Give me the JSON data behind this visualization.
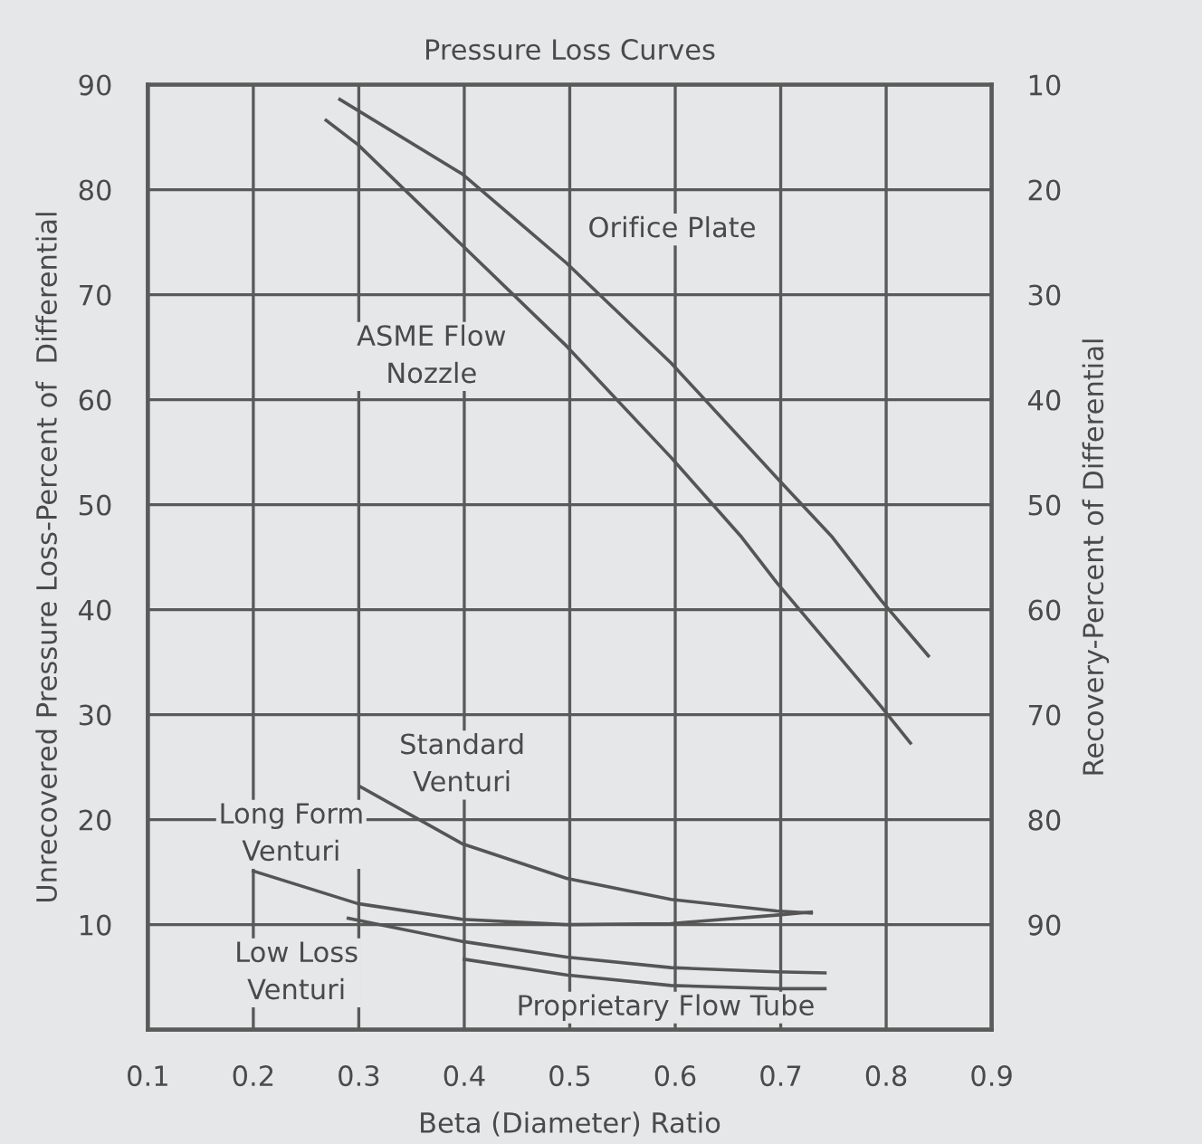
{
  "chart_data": {
    "type": "line",
    "title": "Pressure Loss Curves",
    "xlabel": "Beta (Diameter) Ratio",
    "ylabel": "Unrecovered Pressure Loss-Percent of  Differential",
    "y2label": "Recovery-Percent of Differential",
    "xlim": [
      0.1,
      0.9
    ],
    "xticks": [
      0.1,
      0.2,
      0.3,
      0.4,
      0.5,
      0.6,
      0.7,
      0.8,
      0.9
    ],
    "ylim": [
      0,
      90
    ],
    "yticks": [
      10,
      20,
      30,
      40,
      50,
      60,
      70,
      80,
      90
    ],
    "y2lim": [
      100,
      10
    ],
    "y2ticks": [
      10,
      20,
      30,
      40,
      50,
      60,
      70,
      80,
      90
    ],
    "grid": true,
    "legend": false,
    "marker": "none",
    "line_style": "solid",
    "series": [
      {
        "name": "Orifice Plate",
        "color": "#555555",
        "x": [
          0.282,
          0.398,
          0.497,
          0.596,
          0.696,
          0.749,
          0.795,
          0.84
        ],
        "values": [
          88.6,
          81.5,
          73.0,
          63.5,
          52.6,
          46.9,
          40.9,
          35.6
        ]
      },
      {
        "name": "ASME Flow\nNozzle",
        "color": "#555555",
        "x": [
          0.269,
          0.299,
          0.398,
          0.497,
          0.596,
          0.663,
          0.696,
          0.795,
          0.823
        ],
        "values": [
          86.6,
          84.3,
          74.7,
          65.1,
          54.5,
          46.9,
          42.6,
          30.8,
          27.3
        ]
      },
      {
        "name": "Standard\nVenturi",
        "color": "#555555",
        "x": [
          0.302,
          0.398,
          0.497,
          0.596,
          0.696,
          0.729
        ],
        "values": [
          23.1,
          17.7,
          14.4,
          12.4,
          11.3,
          11.1
        ]
      },
      {
        "name": "Long Form\nVenturi",
        "color": "#555555",
        "x": [
          0.2,
          0.299,
          0.398,
          0.497,
          0.596,
          0.696,
          0.729
        ],
        "values": [
          15.1,
          12.0,
          10.5,
          10.0,
          10.1,
          10.9,
          11.2
        ]
      },
      {
        "name": "Low Loss\nVenturi",
        "color": "#555555",
        "x": [
          0.29,
          0.398,
          0.497,
          0.596,
          0.696,
          0.742
        ],
        "values": [
          10.6,
          8.4,
          6.9,
          5.9,
          5.5,
          5.4
        ]
      },
      {
        "name": "Proprietary Flow Tube",
        "color": "#555555",
        "x": [
          0.4,
          0.497,
          0.596,
          0.696,
          0.742
        ],
        "values": [
          6.7,
          5.2,
          4.2,
          3.9,
          3.9
        ]
      }
    ]
  }
}
